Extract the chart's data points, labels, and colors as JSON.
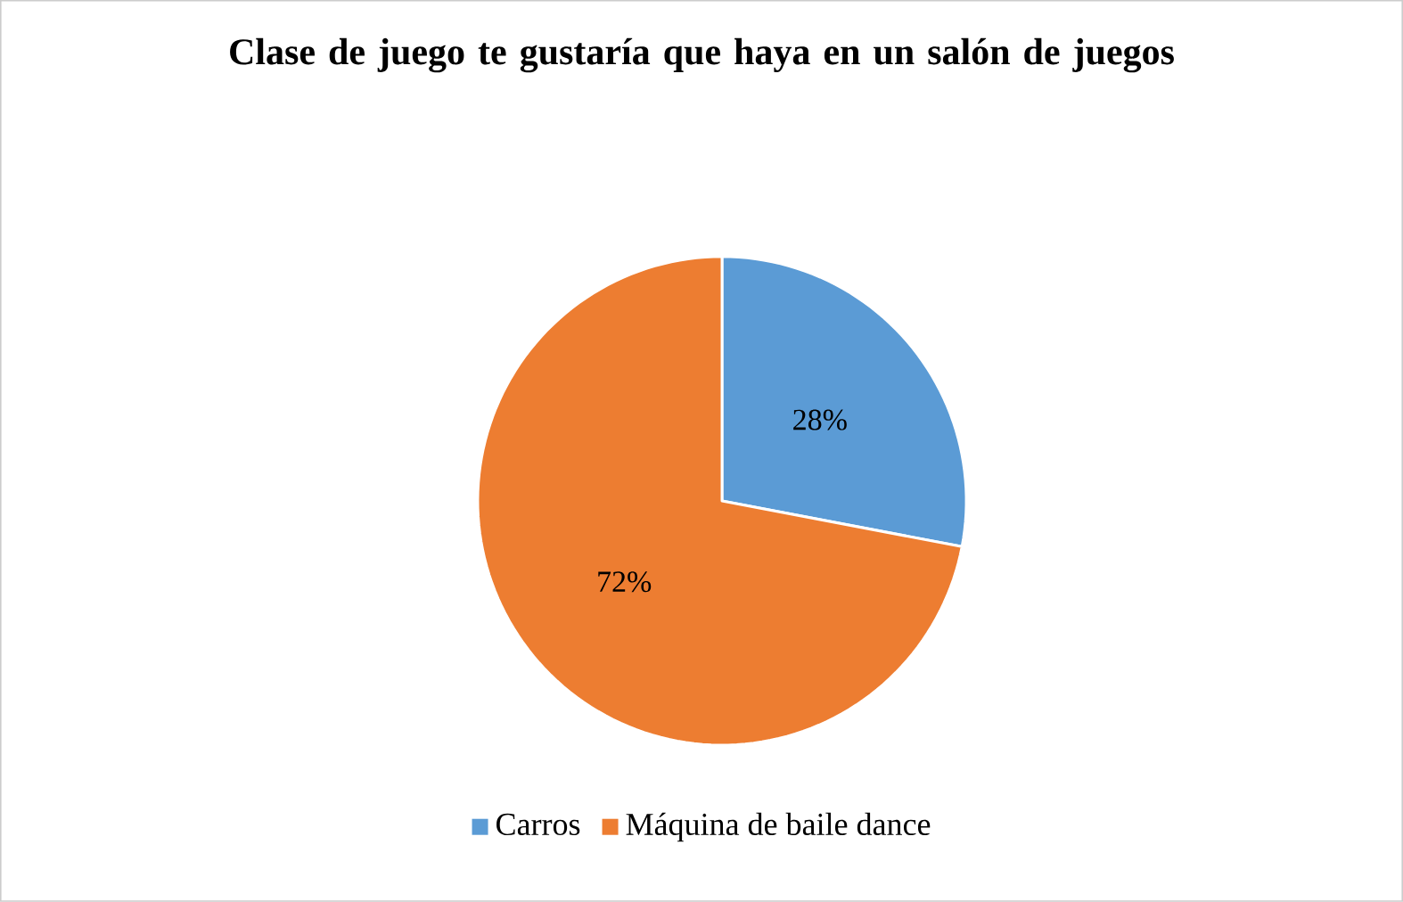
{
  "chart_data": {
    "type": "pie",
    "title": "Clase de juego te gustaría que haya en un salón de juegos",
    "categories": [
      "Carros",
      "Máquina de baile dance"
    ],
    "values": [
      28,
      72
    ],
    "colors": [
      "#5b9bd5",
      "#ed7d31"
    ],
    "value_labels": [
      "28%",
      "72%"
    ],
    "legend": "bottom"
  }
}
